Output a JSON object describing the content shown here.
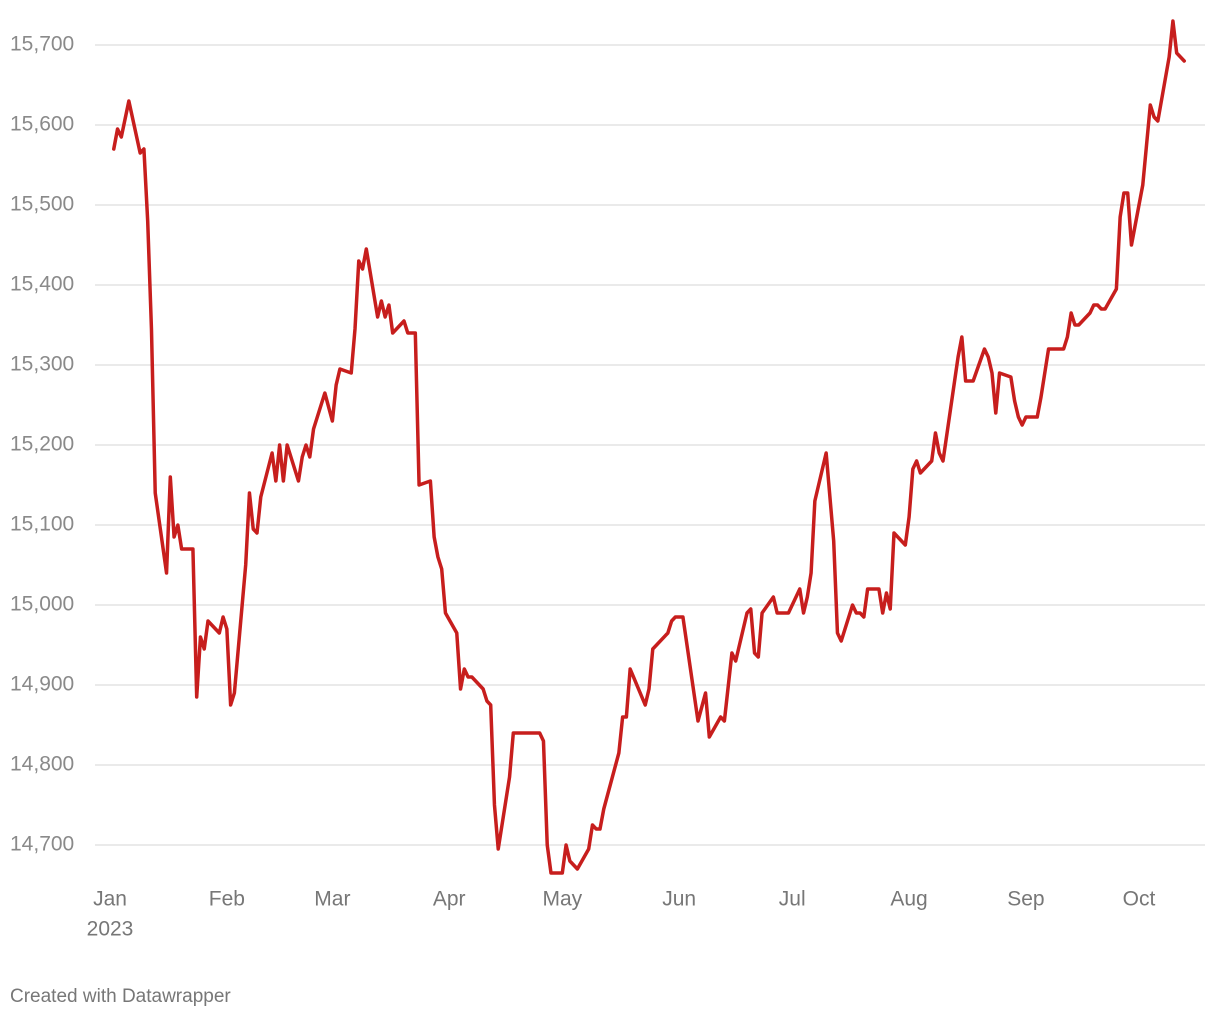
{
  "chart_data": {
    "type": "line",
    "x": [
      1,
      2,
      3,
      5,
      8,
      9,
      10,
      11,
      12,
      15,
      16,
      17,
      18,
      19,
      22,
      23,
      24,
      25,
      26,
      29,
      30,
      31,
      32,
      33,
      36,
      37,
      38,
      39,
      40,
      43,
      44,
      45,
      46,
      47,
      50,
      51,
      52,
      53,
      54,
      57,
      59,
      60,
      61,
      64,
      65,
      66,
      67,
      68,
      71,
      72,
      73,
      74,
      75,
      78,
      79,
      81,
      82,
      85,
      86,
      87,
      88,
      89,
      92,
      93,
      94,
      95,
      96,
      99,
      100,
      101,
      102,
      103,
      106,
      107,
      114,
      115,
      116,
      117,
      120,
      121,
      122,
      124,
      127,
      128,
      129,
      130,
      131,
      135,
      136,
      137,
      138,
      142,
      143,
      144,
      148,
      149,
      150,
      152,
      156,
      158,
      159,
      162,
      163,
      165,
      166,
      169,
      170,
      171,
      172,
      173,
      176,
      177,
      180,
      183,
      184,
      185,
      186,
      187,
      190,
      192,
      193,
      194,
      197,
      198,
      199,
      200,
      201,
      204,
      205,
      206,
      207,
      208,
      211,
      212,
      213,
      214,
      215,
      218,
      219,
      220,
      221,
      225,
      226,
      227,
      229,
      232,
      233,
      234,
      235,
      236,
      239,
      240,
      241,
      242,
      243,
      246,
      247,
      249,
      253,
      254,
      255,
      256,
      257,
      260,
      261,
      262,
      263,
      264,
      267,
      268,
      269,
      270,
      271,
      274,
      275,
      276,
      277,
      278,
      281,
      282,
      283,
      285
    ],
    "values": [
      15570,
      15595,
      15585,
      15630,
      15565,
      15570,
      15480,
      15345,
      15140,
      15040,
      15160,
      15085,
      15100,
      15070,
      15070,
      14885,
      14960,
      14945,
      14980,
      14965,
      14985,
      14970,
      14875,
      14890,
      15050,
      15140,
      15095,
      15090,
      15135,
      15190,
      15155,
      15200,
      15155,
      15200,
      15155,
      15185,
      15200,
      15185,
      15220,
      15265,
      15230,
      15275,
      15295,
      15290,
      15345,
      15430,
      15420,
      15445,
      15360,
      15380,
      15360,
      15375,
      15340,
      15355,
      15340,
      15340,
      15150,
      15155,
      15085,
      15060,
      15045,
      14990,
      14965,
      14895,
      14920,
      14910,
      14910,
      14895,
      14880,
      14875,
      14750,
      14695,
      14785,
      14840,
      14840,
      14830,
      14700,
      14665,
      14665,
      14700,
      14680,
      14670,
      14695,
      14725,
      14720,
      14720,
      14745,
      14815,
      14860,
      14860,
      14920,
      14875,
      14895,
      14945,
      14965,
      14980,
      14985,
      14985,
      14855,
      14890,
      14835,
      14860,
      14855,
      14940,
      14930,
      14990,
      14995,
      14940,
      14935,
      14990,
      15010,
      14990,
      14990,
      15020,
      14990,
      15010,
      15040,
      15130,
      15190,
      15080,
      14965,
      14955,
      15000,
      14990,
      14990,
      14985,
      15020,
      15020,
      14990,
      15015,
      14995,
      15090,
      15075,
      15110,
      15170,
      15180,
      15165,
      15180,
      15215,
      15190,
      15180,
      15310,
      15335,
      15280,
      15280,
      15320,
      15310,
      15290,
      15240,
      15290,
      15285,
      15255,
      15235,
      15225,
      15235,
      15235,
      15260,
      15320,
      15320,
      15335,
      15365,
      15350,
      15350,
      15365,
      15375,
      15375,
      15370,
      15370,
      15395,
      15485,
      15515,
      15515,
      15450,
      15525,
      15575,
      15625,
      15610,
      15605,
      15685,
      15730,
      15690,
      15680
    ],
    "color": "#c71e1d",
    "xlim": [
      0,
      286
    ],
    "xticks": [
      {
        "value": 0,
        "label": "Jan"
      },
      {
        "value": 31,
        "label": "Feb"
      },
      {
        "value": 59,
        "label": "Mar"
      },
      {
        "value": 90,
        "label": "Apr"
      },
      {
        "value": 120,
        "label": "May"
      },
      {
        "value": 151,
        "label": "Jun"
      },
      {
        "value": 181,
        "label": "Jul"
      },
      {
        "value": 212,
        "label": "Aug"
      },
      {
        "value": 243,
        "label": "Sep"
      },
      {
        "value": 273,
        "label": "Oct"
      }
    ],
    "x_sublabel": "2023",
    "ylim": [
      14660,
      15740
    ],
    "yticks": [
      {
        "value": 14700,
        "label": "14,700"
      },
      {
        "value": 14800,
        "label": "14,800"
      },
      {
        "value": 14900,
        "label": "14,900"
      },
      {
        "value": 15000,
        "label": "15,000"
      },
      {
        "value": 15100,
        "label": "15,100"
      },
      {
        "value": 15200,
        "label": "15,200"
      },
      {
        "value": 15300,
        "label": "15,300"
      },
      {
        "value": 15400,
        "label": "15,400"
      },
      {
        "value": 15500,
        "label": "15,500"
      },
      {
        "value": 15600,
        "label": "15,600"
      },
      {
        "value": 15700,
        "label": "15,700"
      }
    ],
    "grid": true,
    "footer": "Created with Datawrapper"
  }
}
